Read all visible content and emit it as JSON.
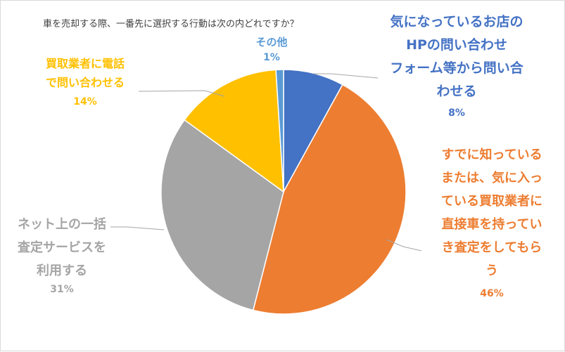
{
  "chart_data": {
    "type": "pie",
    "title": "車を売却する際、一番先に選択する行動は次の内どれですか？",
    "slices": [
      {
        "label": "気になっているお店のHPの問い合わせフォーム等から問い合わせる",
        "value": 8,
        "pct_label": "8%",
        "color": "#4472c4"
      },
      {
        "label": "すでに知っているまたは、気に入っている買取業者に直接車を持っていき査定をしてもらう",
        "value": 46,
        "pct_label": "46%",
        "color": "#ed7d31"
      },
      {
        "label": "ネット上の一括査定サービスを利用する",
        "value": 31,
        "pct_label": "31%",
        "color": "#a5a5a5"
      },
      {
        "label": "買取業者に電話で問い合わせる",
        "value": 14,
        "pct_label": "14%",
        "color": "#ffc000"
      },
      {
        "label": "その他",
        "value": 1,
        "pct_label": "1%",
        "color": "#5b9bd5"
      }
    ],
    "label_lines": {
      "hp": [
        "気になっているお店の",
        "HPの問い合わせ",
        "フォーム等から問い合",
        "わせる"
      ],
      "direct": [
        "すでに知っている",
        "または、気に入っ",
        "ている買取業者に",
        "直接車を持ってい",
        "き査定をしてもら",
        "う"
      ],
      "net": [
        "ネット上の一括",
        "査定サービスを",
        "利用する"
      ],
      "phone": [
        "買取業者に電話",
        "で問い合わせる"
      ],
      "other": [
        "その他"
      ]
    },
    "start_angle_deg": 0,
    "direction": "clockwise"
  }
}
